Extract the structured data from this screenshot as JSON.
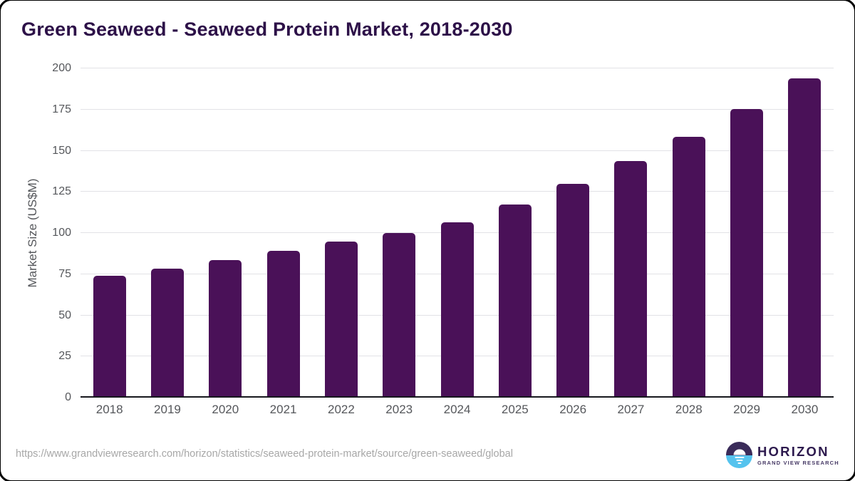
{
  "title": "Green Seaweed - Seaweed Protein Market, 2018-2030",
  "chart_data": {
    "type": "bar",
    "title": "Green Seaweed - Seaweed Protein Market, 2018-2030",
    "categories": [
      "2018",
      "2019",
      "2020",
      "2021",
      "2022",
      "2023",
      "2024",
      "2025",
      "2026",
      "2027",
      "2028",
      "2029",
      "2030"
    ],
    "values": [
      73.3,
      77.6,
      82.8,
      88.3,
      93.8,
      99.2,
      105.7,
      116.5,
      129.2,
      142.8,
      157.6,
      174.6,
      192.9
    ],
    "xlabel": "",
    "ylabel": "Market Size (US$M)",
    "ylim": [
      0,
      200
    ],
    "ytick_step": 25,
    "ytick_labels": [
      "0",
      "25",
      "50",
      "75",
      "100",
      "125",
      "150",
      "175",
      "200"
    ],
    "grid": true,
    "legend": "none",
    "bar_color": "#4a1158"
  },
  "footer": {
    "source_url": "https://www.grandviewresearch.com/horizon/statistics/seaweed-protein-market/source/green-seaweed/global",
    "logo": {
      "wordmark": "HORIZON",
      "tagline": "GRAND VIEW RESEARCH",
      "icon": "horizon-sun-over-water-icon"
    }
  },
  "colors": {
    "bar": "#4a1158",
    "title_text": "#2d1148",
    "axis_text": "#55575b",
    "gridline": "#e2e2e6",
    "axis_line": "#16181d",
    "source_text": "#a7a7a7",
    "logo_purple": "#3a2b59",
    "logo_blue": "#55c3ee",
    "logo_wordmark": "#2d1a4e",
    "logo_tagline": "#473a66"
  }
}
